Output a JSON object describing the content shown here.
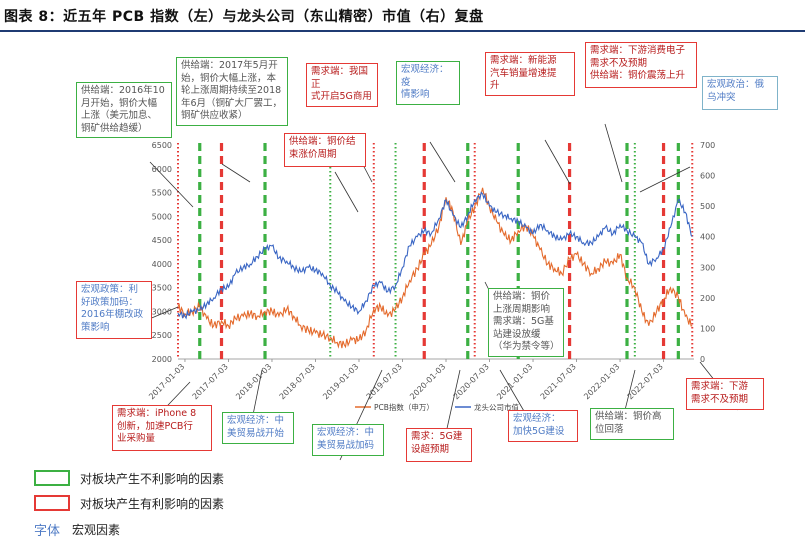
{
  "title": "图表 8：近五年 PCB 指数（左）与龙头公司（东山精密）市值（右）复盘",
  "chart_data": {
    "type": "line",
    "x_ticks": [
      "2017-01-03",
      "2017-07-03",
      "2018-01-03",
      "2018-07-03",
      "2019-01-03",
      "2019-07-03",
      "2020-01-03",
      "2020-07-03",
      "2021-01-03",
      "2021-07-03",
      "2022-01-03",
      "2022-07-03"
    ],
    "y_left_ticks": [
      "2000",
      "2500",
      "3000",
      "3500",
      "4000",
      "4500",
      "5000",
      "5500",
      "6000",
      "6500"
    ],
    "y_right_ticks": [
      "0",
      "100",
      "200",
      "300",
      "400",
      "500",
      "600",
      "700"
    ],
    "ylim_left": [
      2000,
      6500
    ],
    "ylim_right": [
      0,
      700
    ],
    "series": [
      {
        "name": "PCB指数（申万）",
        "axis": "left",
        "color": "#e46a2c",
        "values": [
          [
            2016.92,
            3100
          ],
          [
            2017.0,
            2950
          ],
          [
            2017.08,
            3000
          ],
          [
            2017.17,
            3100
          ],
          [
            2017.25,
            2850
          ],
          [
            2017.33,
            2700
          ],
          [
            2017.42,
            2800
          ],
          [
            2017.5,
            2700
          ],
          [
            2017.58,
            2850
          ],
          [
            2017.67,
            2900
          ],
          [
            2017.75,
            2950
          ],
          [
            2017.83,
            2900
          ],
          [
            2017.92,
            3000
          ],
          [
            2018.0,
            3000
          ],
          [
            2018.08,
            2900
          ],
          [
            2018.17,
            3050
          ],
          [
            2018.25,
            2900
          ],
          [
            2018.33,
            2700
          ],
          [
            2018.42,
            2600
          ],
          [
            2018.5,
            2550
          ],
          [
            2018.58,
            2500
          ],
          [
            2018.67,
            2450
          ],
          [
            2018.75,
            2350
          ],
          [
            2018.83,
            2300
          ],
          [
            2018.92,
            2400
          ],
          [
            2019.0,
            2400
          ],
          [
            2019.08,
            2600
          ],
          [
            2019.17,
            3050
          ],
          [
            2019.25,
            3100
          ],
          [
            2019.33,
            2900
          ],
          [
            2019.42,
            3050
          ],
          [
            2019.5,
            3300
          ],
          [
            2019.58,
            3650
          ],
          [
            2019.67,
            3900
          ],
          [
            2019.75,
            4200
          ],
          [
            2019.83,
            4400
          ],
          [
            2019.92,
            4800
          ],
          [
            2020.0,
            5400
          ],
          [
            2020.08,
            5100
          ],
          [
            2020.17,
            4400
          ],
          [
            2020.25,
            4900
          ],
          [
            2020.33,
            5200
          ],
          [
            2020.42,
            5600
          ],
          [
            2020.5,
            5200
          ],
          [
            2020.58,
            4900
          ],
          [
            2020.67,
            4600
          ],
          [
            2020.75,
            4500
          ],
          [
            2020.83,
            4700
          ],
          [
            2020.92,
            4800
          ],
          [
            2021.0,
            4600
          ],
          [
            2021.08,
            4300
          ],
          [
            2021.17,
            4000
          ],
          [
            2021.25,
            3900
          ],
          [
            2021.33,
            3800
          ],
          [
            2021.42,
            4100
          ],
          [
            2021.5,
            4200
          ],
          [
            2021.58,
            4000
          ],
          [
            2021.67,
            3800
          ],
          [
            2021.75,
            3900
          ],
          [
            2021.83,
            4050
          ],
          [
            2021.92,
            4000
          ],
          [
            2022.0,
            4200
          ],
          [
            2022.08,
            3700
          ],
          [
            2022.17,
            3500
          ],
          [
            2022.25,
            3000
          ],
          [
            2022.33,
            2700
          ],
          [
            2022.42,
            3000
          ],
          [
            2022.5,
            3250
          ],
          [
            2022.58,
            3500
          ],
          [
            2022.67,
            3300
          ],
          [
            2022.75,
            2900
          ],
          [
            2022.83,
            2700
          ]
        ]
      },
      {
        "name": "龙头公司市值",
        "axis": "right",
        "color": "#3a66c4",
        "values": [
          [
            2016.92,
            150
          ],
          [
            2017.0,
            140
          ],
          [
            2017.08,
            155
          ],
          [
            2017.17,
            160
          ],
          [
            2017.25,
            180
          ],
          [
            2017.33,
            200
          ],
          [
            2017.42,
            230
          ],
          [
            2017.5,
            235
          ],
          [
            2017.58,
            280
          ],
          [
            2017.67,
            300
          ],
          [
            2017.75,
            310
          ],
          [
            2017.83,
            335
          ],
          [
            2017.92,
            360
          ],
          [
            2018.0,
            370
          ],
          [
            2018.08,
            330
          ],
          [
            2018.17,
            320
          ],
          [
            2018.25,
            300
          ],
          [
            2018.33,
            285
          ],
          [
            2018.42,
            300
          ],
          [
            2018.5,
            290
          ],
          [
            2018.58,
            280
          ],
          [
            2018.67,
            240
          ],
          [
            2018.75,
            220
          ],
          [
            2018.83,
            190
          ],
          [
            2018.92,
            170
          ],
          [
            2019.0,
            155
          ],
          [
            2019.08,
            190
          ],
          [
            2019.17,
            240
          ],
          [
            2019.25,
            250
          ],
          [
            2019.33,
            220
          ],
          [
            2019.42,
            240
          ],
          [
            2019.5,
            300
          ],
          [
            2019.58,
            370
          ],
          [
            2019.67,
            400
          ],
          [
            2019.75,
            420
          ],
          [
            2019.83,
            410
          ],
          [
            2019.92,
            460
          ],
          [
            2020.0,
            520
          ],
          [
            2020.08,
            470
          ],
          [
            2020.17,
            430
          ],
          [
            2020.25,
            470
          ],
          [
            2020.33,
            520
          ],
          [
            2020.42,
            540
          ],
          [
            2020.5,
            500
          ],
          [
            2020.58,
            480
          ],
          [
            2020.67,
            470
          ],
          [
            2020.75,
            460
          ],
          [
            2020.83,
            450
          ],
          [
            2020.92,
            430
          ],
          [
            2021.0,
            410
          ],
          [
            2021.08,
            440
          ],
          [
            2021.17,
            420
          ],
          [
            2021.25,
            400
          ],
          [
            2021.33,
            390
          ],
          [
            2021.42,
            410
          ],
          [
            2021.5,
            400
          ],
          [
            2021.58,
            380
          ],
          [
            2021.67,
            380
          ],
          [
            2021.75,
            400
          ],
          [
            2021.83,
            430
          ],
          [
            2021.92,
            410
          ],
          [
            2022.0,
            440
          ],
          [
            2022.08,
            420
          ],
          [
            2022.17,
            400
          ],
          [
            2022.25,
            380
          ],
          [
            2022.33,
            310
          ],
          [
            2022.42,
            330
          ],
          [
            2022.5,
            360
          ],
          [
            2022.58,
            430
          ],
          [
            2022.67,
            520
          ],
          [
            2022.75,
            480
          ],
          [
            2022.83,
            400
          ]
        ]
      }
    ],
    "green_dashed_lines": [
      2017.17,
      2017.92,
      2020.25,
      2020.83,
      2022.08,
      2022.67
    ],
    "green_dotted_lines": [
      2018.67,
      2019.42,
      2022.17
    ],
    "red_dashed_lines": [
      2017.42,
      2019.75,
      2021.42,
      2022.5
    ],
    "red_dotted_lines": [
      2016.92,
      2019.17,
      2020.33,
      2022.83
    ],
    "series_legend": [
      "PCB指数（申万）",
      "龙头公司市值"
    ]
  },
  "annotations": [
    {
      "id": "a1",
      "style": "g",
      "text": "供给端：2016年10\n月开始，铜价大幅\n上涨（美元加息、\n铜矿供给趋缓）"
    },
    {
      "id": "a2",
      "style": "g",
      "text": "供给端：2017年5月开\n始，铜价大幅上涨，本\n轮上涨周期持续至2018\n年6月（铜矿大厂罢工，\n铜矿供应收紧）"
    },
    {
      "id": "a3",
      "style": "r",
      "text": "需求端：我国正\n式开启5G商用"
    },
    {
      "id": "a4",
      "style": "b",
      "text": "宏观经济：疫\n情影响"
    },
    {
      "id": "a5",
      "style": "r",
      "text": "需求端：新能源\n汽车销量增速提\n升"
    },
    {
      "id": "a6",
      "style": "r",
      "text": "需求端：下游消费电子\n需求不及预期\n供给端：铜价震荡上升"
    },
    {
      "id": "a7",
      "style": "plain-b",
      "text": "宏观政治：俄\n乌冲突"
    },
    {
      "id": "a8",
      "style": "r",
      "text": "供给端：铜价结\n束涨价周期"
    },
    {
      "id": "a9",
      "style": "rb",
      "text": "宏观政策：利\n好政策加码：\n2016年棚改政\n策影响"
    },
    {
      "id": "a10",
      "style": "g",
      "text": "供给端：铜价\n上涨周期影响\n需求端：5G基\n站建设放缓\n（华为禁令等）"
    },
    {
      "id": "a11",
      "style": "r",
      "text": "需求端：下游\n需求不及预期"
    },
    {
      "id": "a12",
      "style": "r",
      "text": "需求端：iPhone 8\n创新，加速PCB行\n业采购量"
    },
    {
      "id": "a13",
      "style": "b",
      "text": "宏观经济：中\n美贸易战开始"
    },
    {
      "id": "a14",
      "style": "b",
      "text": "宏观经济：中\n美贸易战加码"
    },
    {
      "id": "a15",
      "style": "r",
      "text": "需求：5G建\n设超预期"
    },
    {
      "id": "a16",
      "style": "rb",
      "text": "宏观经济：\n加快5G建设"
    },
    {
      "id": "a17",
      "style": "g",
      "text": "供给端：铜价高\n位回落"
    }
  ],
  "legend": {
    "green_label": "对板块产生不利影响的因素",
    "red_label": "对板块产生有利影响的因素",
    "blue_word": "字体",
    "blue_label": "宏观因素"
  },
  "colors": {
    "green": "#3cb043",
    "red": "#e53935",
    "orange": "#e46a2c",
    "blue": "#3a66c4"
  }
}
